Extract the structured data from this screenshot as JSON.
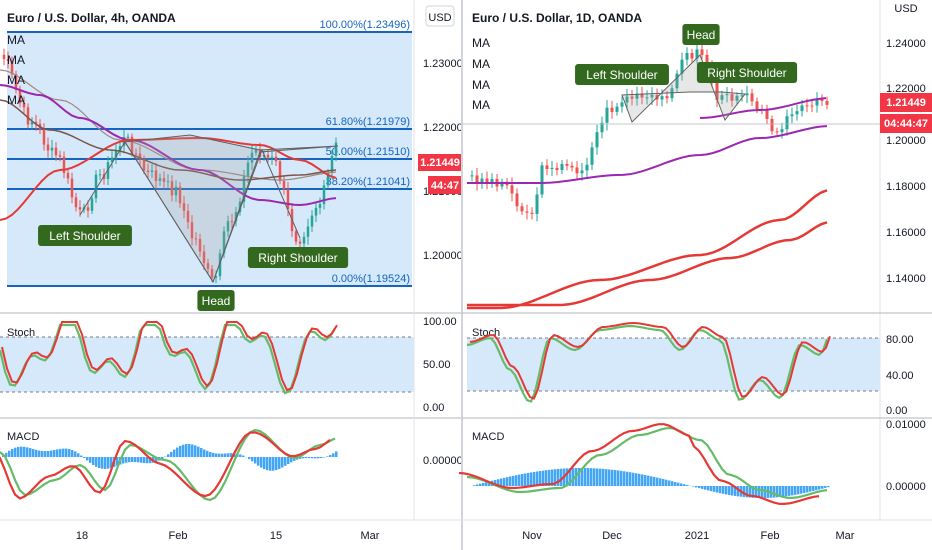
{
  "colors": {
    "fib_fill": "#d6e9fb",
    "fib_line": "#1565c0",
    "stoch_fill": "#d6e9fb",
    "k_line": "#e53935",
    "d_line": "#66bb6a",
    "macd_hist": "#42a5f5",
    "ma_purple": "#9c27b0",
    "ma_red": "#e53935",
    "ma_brown": "#a1887f",
    "up_candle": "#26a69a",
    "down_candle": "#ef5350",
    "price_badge": "#f23645",
    "label_bg": "#33691e"
  },
  "left": {
    "title": "Euro / U.S. Dollar, 4h, OANDA",
    "currency": "USD",
    "ma_labels": [
      "MA",
      "MA",
      "MA",
      "MA"
    ],
    "price_ticks": [
      "1.23000",
      "1.22000",
      "1.21000",
      "1.20000"
    ],
    "fib_levels": [
      {
        "label": "100.00%(1.23496)",
        "price": 1.23496
      },
      {
        "label": "61.80%(1.21979)",
        "price": 1.21979
      },
      {
        "label": "50.00%(1.21510)",
        "price": 1.2151
      },
      {
        "label": "38.20%(1.21041)",
        "price": 1.21041
      },
      {
        "label": "0.00%(1.19524)",
        "price": 1.19524
      }
    ],
    "price_badge": "1.21449",
    "countdown_badge": "44:47",
    "pattern_labels": {
      "left_shoulder": "Left Shoulder",
      "head": "Head",
      "right_shoulder": "Right Shoulder"
    },
    "stoch": {
      "title": "Stoch",
      "ticks": [
        "100.00",
        "50.00",
        "0.00"
      ]
    },
    "macd": {
      "title": "MACD",
      "ticks": [
        "0.00000"
      ]
    },
    "time_ticks": [
      "18",
      "Feb",
      "15",
      "Mar"
    ]
  },
  "right": {
    "title": "Euro / U.S. Dollar, 1D, OANDA",
    "currency": "USD",
    "ma_labels": [
      "MA",
      "MA",
      "MA",
      "MA"
    ],
    "price_ticks": [
      "1.24000",
      "1.22000",
      "1.20000",
      "1.18000",
      "1.16000",
      "1.14000"
    ],
    "price_badge": "1.21449",
    "countdown_badge": "04:44:47",
    "pattern_labels": {
      "left_shoulder": "Left Shoulder",
      "head": "Head",
      "right_shoulder": "Right Shoulder"
    },
    "stoch": {
      "title": "Stoch",
      "ticks": [
        "80.00",
        "40.00",
        "0.00"
      ]
    },
    "macd": {
      "title": "MACD",
      "ticks": [
        "0.01000",
        "0.00000"
      ]
    },
    "time_ticks": [
      "Nov",
      "Dec",
      "2021",
      "Feb",
      "Mar"
    ]
  }
}
